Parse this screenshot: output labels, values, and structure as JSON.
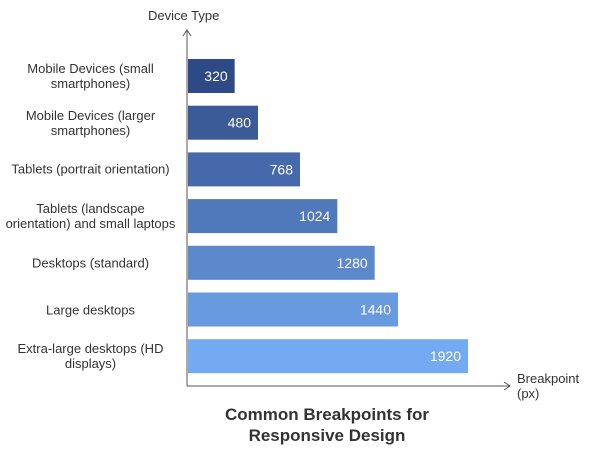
{
  "chart_data": {
    "type": "bar",
    "orientation": "horizontal",
    "title": "Common Breakpoints for Responsive Design",
    "xlabel": "Breakpoint (px)",
    "ylabel": "Device Type",
    "categories": [
      "Mobile Devices (small smartphones)",
      "Mobile Devices (larger smartphones)",
      "Tablets (portrait orientation)",
      "Tablets (landscape orientation) and small laptops",
      "Desktops (standard)",
      "Large desktops",
      "Extra-large desktops (HD displays)"
    ],
    "values": [
      320,
      480,
      768,
      1024,
      1280,
      1440,
      1920
    ],
    "colors": [
      "#2e4a86",
      "#3a5a98",
      "#4569aa",
      "#5079bb",
      "#5b89cc",
      "#679ade",
      "#74aaf2"
    ],
    "xlim": [
      0,
      2200
    ],
    "grid": false,
    "data_labels": true
  }
}
